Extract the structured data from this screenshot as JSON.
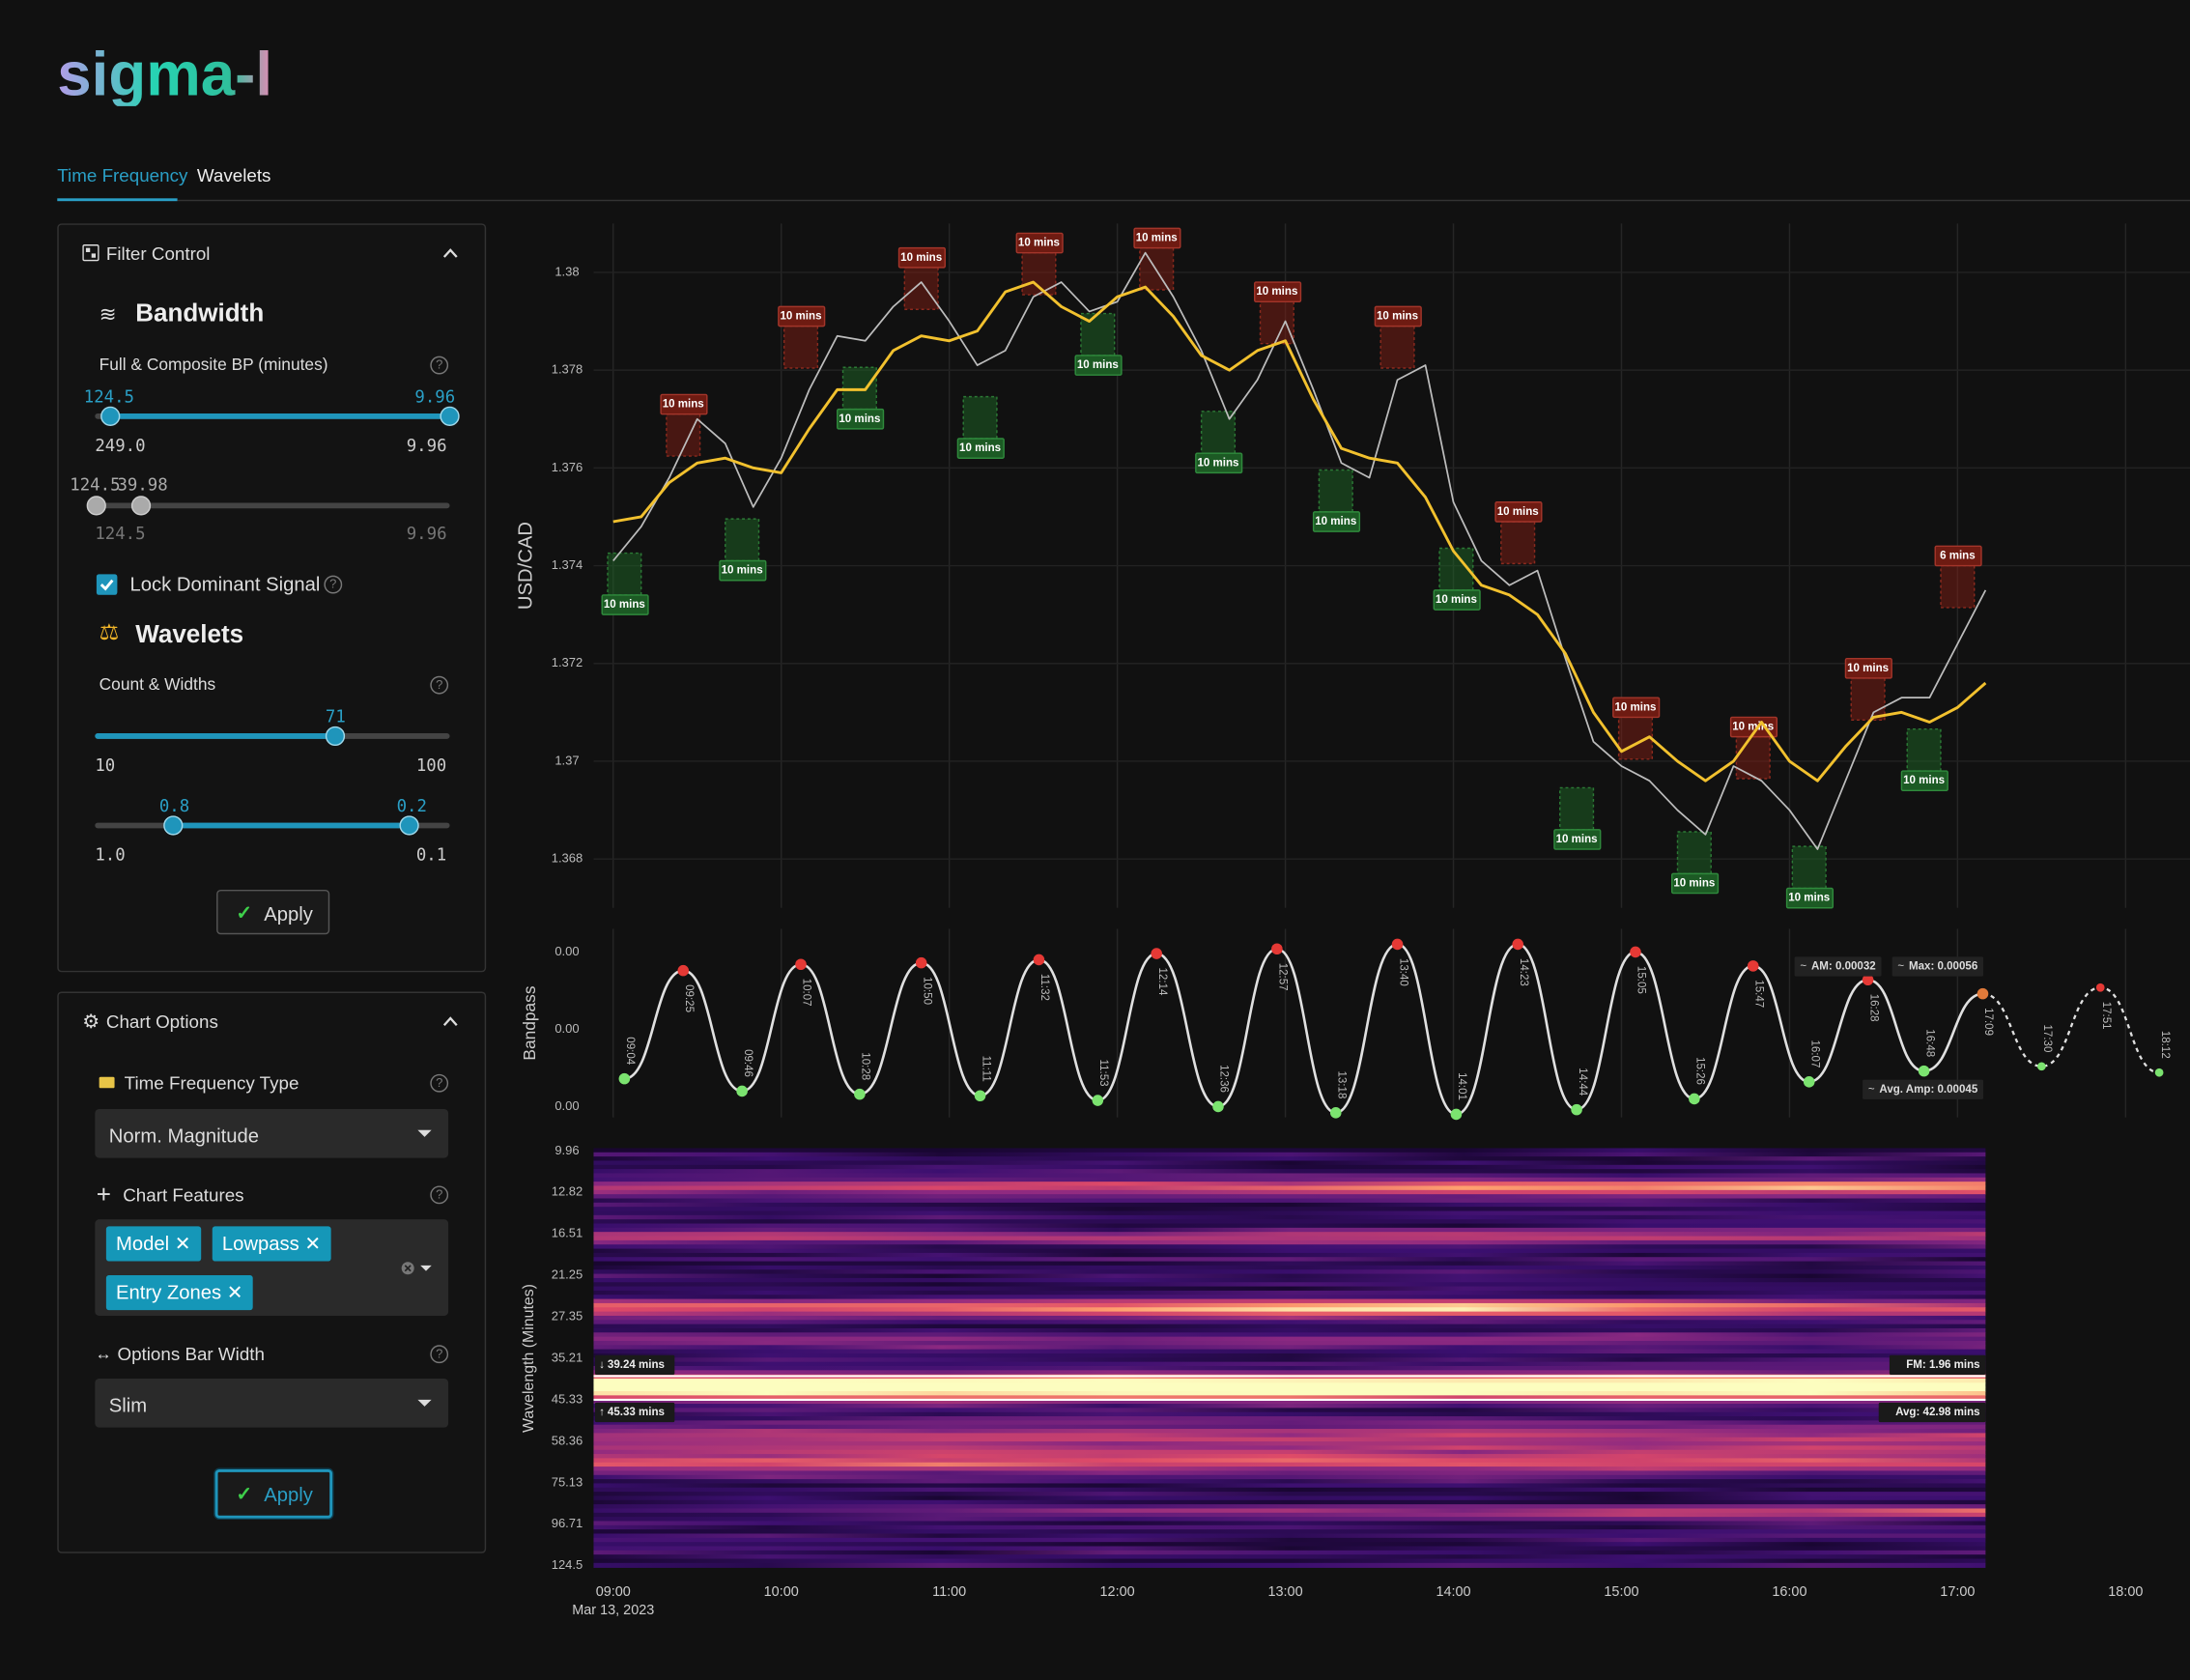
{
  "header": {
    "logo": "sigma-l",
    "tabs": [
      "Time Frequency",
      "Wavelets"
    ]
  },
  "filter_control": {
    "title": "Filter Control",
    "bandwidth": {
      "heading": "Bandwidth",
      "label": "Full & Composite BP (minutes)",
      "slider1": {
        "low": "124.5",
        "high": "9.96",
        "min": "249.0",
        "max": "9.96"
      },
      "slider2": {
        "low": "124.5",
        "high": "39.98",
        "min": "124.5",
        "max": "9.96"
      },
      "lock": "Lock Dominant Signal"
    },
    "wavelets": {
      "heading": "Wavelets",
      "label": "Count & Widths",
      "count": {
        "value": "71",
        "min": "10",
        "max": "100"
      },
      "widths": {
        "low": "0.8",
        "high": "0.2",
        "min": "1.0",
        "max": "0.1"
      }
    },
    "apply": "Apply"
  },
  "chart_options": {
    "title": "Chart Options",
    "tf_type_label": "Time Frequency Type",
    "tf_type": "Norm. Magnitude",
    "features_label": "Chart Features",
    "features": [
      "Model",
      "Lowpass",
      "Entry Zones"
    ],
    "bar_width_label": "Options Bar Width",
    "bar_width": "Slim",
    "apply": "Apply"
  },
  "chart_data": [
    {
      "type": "line",
      "ylabel": "USD/CAD",
      "x": [
        "09:00",
        "09:10",
        "09:20",
        "09:30",
        "09:40",
        "09:50",
        "10:00",
        "10:10",
        "10:20",
        "10:30",
        "10:40",
        "10:50",
        "11:00",
        "11:10",
        "11:20",
        "11:30",
        "11:40",
        "11:50",
        "12:00",
        "12:10",
        "12:20",
        "12:30",
        "12:40",
        "12:50",
        "13:00",
        "13:10",
        "13:20",
        "13:30",
        "13:40",
        "13:50",
        "14:00",
        "14:10",
        "14:20",
        "14:30",
        "14:40",
        "14:50",
        "15:00",
        "15:10",
        "15:20",
        "15:30",
        "15:40",
        "15:50",
        "16:00",
        "16:10",
        "16:20",
        "16:30",
        "16:40",
        "16:50",
        "17:00",
        "17:10"
      ],
      "series": [
        {
          "color": "#bdbdbd",
          "values": [
            1.3741,
            1.3748,
            1.3758,
            1.377,
            1.3765,
            1.3752,
            1.3762,
            1.3776,
            1.3787,
            1.3786,
            1.3793,
            1.3798,
            1.379,
            1.3781,
            1.3784,
            1.3795,
            1.3798,
            1.3792,
            1.3794,
            1.3804,
            1.3795,
            1.3784,
            1.377,
            1.3778,
            1.379,
            1.3776,
            1.3761,
            1.3758,
            1.3778,
            1.3781,
            1.3753,
            1.3741,
            1.3736,
            1.3739,
            1.3721,
            1.3704,
            1.3699,
            1.3696,
            1.369,
            1.3685,
            1.3699,
            1.3696,
            1.369,
            1.3682,
            1.3696,
            1.371,
            1.3713,
            1.3713,
            1.3724,
            1.3735
          ]
        },
        {
          "name": "Model",
          "color": "#f2c12e",
          "values": [
            1.3749,
            1.375,
            1.3757,
            1.3761,
            1.3762,
            1.376,
            1.3759,
            1.3768,
            1.3776,
            1.3776,
            1.3784,
            1.3787,
            1.3786,
            1.3788,
            1.3796,
            1.3798,
            1.3793,
            1.379,
            1.3795,
            1.3797,
            1.3791,
            1.3783,
            1.378,
            1.3784,
            1.3786,
            1.3774,
            1.3764,
            1.3762,
            1.3761,
            1.3754,
            1.3743,
            1.3736,
            1.3734,
            1.373,
            1.3722,
            1.371,
            1.3702,
            1.3705,
            1.37,
            1.3696,
            1.37,
            1.3708,
            1.37,
            1.3696,
            1.3703,
            1.3709,
            1.371,
            1.3708,
            1.3711,
            1.3716
          ]
        }
      ],
      "ylim": [
        1.367,
        1.381
      ],
      "yticks": [
        1.368,
        1.37,
        1.372,
        1.374,
        1.376,
        1.378,
        1.38
      ],
      "grid": true,
      "zones": [
        {
          "side": "sell",
          "x": "09:25",
          "value": 1.3773,
          "label": "10 mins"
        },
        {
          "side": "sell",
          "x": "10:07",
          "value": 1.3791,
          "label": "10 mins"
        },
        {
          "side": "sell",
          "x": "10:50",
          "value": 1.3803,
          "label": "10 mins"
        },
        {
          "side": "sell",
          "x": "11:32",
          "value": 1.3806,
          "label": "10 mins"
        },
        {
          "side": "sell",
          "x": "12:14",
          "value": 1.3807,
          "label": "10 mins"
        },
        {
          "side": "sell",
          "x": "12:57",
          "value": 1.3796,
          "label": "10 mins"
        },
        {
          "side": "sell",
          "x": "13:40",
          "value": 1.3791,
          "label": "10 mins"
        },
        {
          "side": "sell",
          "x": "14:23",
          "value": 1.3751,
          "label": "10 mins"
        },
        {
          "side": "sell",
          "x": "15:05",
          "value": 1.3711,
          "label": "10 mins"
        },
        {
          "side": "sell",
          "x": "15:47",
          "value": 1.3707,
          "label": "10 mins"
        },
        {
          "side": "sell",
          "x": "16:28",
          "value": 1.3719,
          "label": "10 mins"
        },
        {
          "side": "sell",
          "x": "17:00",
          "value": 1.3742,
          "label": "6 mins"
        },
        {
          "side": "buy",
          "x": "09:04",
          "value": 1.3732,
          "label": "10 mins"
        },
        {
          "side": "buy",
          "x": "09:46",
          "value": 1.3739,
          "label": "10 mins"
        },
        {
          "side": "buy",
          "x": "10:28",
          "value": 1.377,
          "label": "10 mins"
        },
        {
          "side": "buy",
          "x": "11:11",
          "value": 1.3764,
          "label": "10 mins"
        },
        {
          "side": "buy",
          "x": "11:53",
          "value": 1.3781,
          "label": "10 mins"
        },
        {
          "side": "buy",
          "x": "12:36",
          "value": 1.3761,
          "label": "10 mins"
        },
        {
          "side": "buy",
          "x": "13:18",
          "value": 1.3749,
          "label": "10 mins"
        },
        {
          "side": "buy",
          "x": "14:01",
          "value": 1.3733,
          "label": "10 mins"
        },
        {
          "side": "buy",
          "x": "14:44",
          "value": 1.3684,
          "label": "10 mins"
        },
        {
          "side": "buy",
          "x": "15:26",
          "value": 1.3675,
          "label": "10 mins"
        },
        {
          "side": "buy",
          "x": "16:07",
          "value": 1.3672,
          "label": "10 mins"
        },
        {
          "side": "buy",
          "x": "16:48",
          "value": 1.3696,
          "label": "10 mins"
        }
      ]
    },
    {
      "type": "wave",
      "ylabel": "Bandpass",
      "x": [
        "09:04",
        "09:25",
        "09:46",
        "10:07",
        "10:28",
        "10:50",
        "11:11",
        "11:32",
        "11:53",
        "12:14",
        "12:36",
        "12:57",
        "13:18",
        "13:40",
        "14:01",
        "14:23",
        "14:44",
        "15:05",
        "15:26",
        "15:47",
        "16:07",
        "16:28",
        "16:48",
        "17:09",
        "17:30",
        "17:51",
        "18:12"
      ],
      "values": [
        -0.00032,
        0.00038,
        -0.0004,
        0.00042,
        -0.00042,
        0.00043,
        -0.00043,
        0.00045,
        -0.00046,
        0.00049,
        -0.0005,
        0.00052,
        -0.00054,
        0.00055,
        -0.00055,
        0.00055,
        -0.00052,
        0.0005,
        -0.00045,
        0.00041,
        -0.00034,
        0.00032,
        -0.00027,
        0.00023,
        -0.00024,
        0.00027,
        -0.00028
      ],
      "color": "#e0e0e0",
      "forecast_start": "17:09",
      "ylim": [
        -0.00057,
        0.00065
      ],
      "yticks": [
        {
          "value": -0.0005,
          "label": "0.00"
        },
        {
          "value": 0,
          "label": "0.00"
        },
        {
          "value": 0.0005,
          "label": "0.00"
        }
      ],
      "stats": {
        "am": "AM: 0.00032",
        "max": "Max: 0.00056",
        "avg": "Avg. Amp: 0.00045"
      }
    },
    {
      "type": "heatmap",
      "ylabel": "Wavelength (Minutes)",
      "log_y": true,
      "ylim": [
        124.5,
        9.96
      ],
      "yticks": [
        9.96,
        12.82,
        16.51,
        21.25,
        27.35,
        35.21,
        45.33,
        58.36,
        75.13,
        96.71,
        124.5
      ],
      "markers": [
        {
          "value": 39.24,
          "label": "39.24 mins"
        },
        {
          "value": 45.33,
          "label": "45.33 mins"
        }
      ],
      "stats": {
        "fm": "FM: 1.96 mins",
        "avg": "Avg: 42.98 mins"
      },
      "xlim": [
        "08:53",
        "18:23"
      ],
      "xticks": [
        "09:00",
        "10:00",
        "11:00",
        "12:00",
        "13:00",
        "14:00",
        "15:00",
        "16:00",
        "17:00",
        "18:00"
      ],
      "date": "Mar 13, 2023"
    }
  ]
}
